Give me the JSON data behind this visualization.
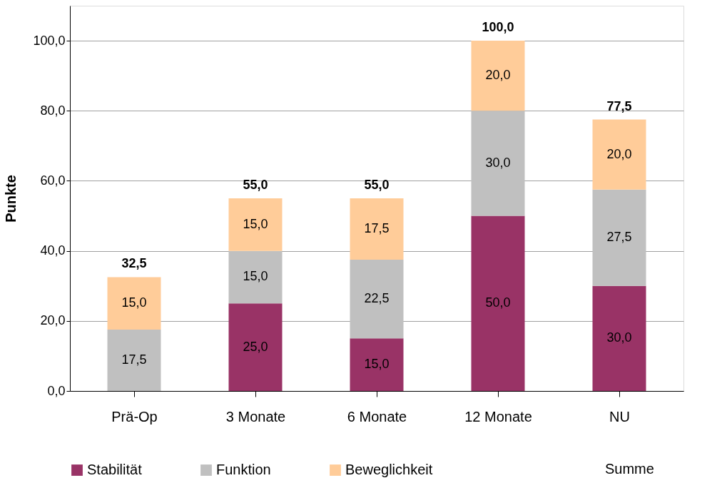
{
  "chart_data": {
    "type": "bar",
    "stacked": true,
    "ylabel": "Punkte",
    "categories": [
      "Prä-Op",
      "3 Monate",
      "6 Monate",
      "12 Monate",
      "NU"
    ],
    "series": [
      {
        "name": "Stabilität",
        "color": "#993366",
        "values": [
          0,
          25,
          15,
          50,
          30
        ],
        "value_labels": [
          null,
          "25,0",
          "15,0",
          "50,0",
          "30,0"
        ]
      },
      {
        "name": "Funktion",
        "color": "#c0c0c0",
        "values": [
          17.5,
          15,
          22.5,
          30,
          27.5
        ],
        "value_labels": [
          "17,5",
          "15,0",
          "22,5",
          "30,0",
          "27,5"
        ]
      },
      {
        "name": "Beweglichkeit",
        "color": "#ffcc99",
        "values": [
          15,
          15,
          17.5,
          20,
          20
        ],
        "value_labels": [
          "15,0",
          "15,0",
          "17,5",
          "20,0",
          "20,0"
        ]
      }
    ],
    "totals": [
      "32,5",
      "55,0",
      "55,0",
      "100,0",
      "77,5"
    ],
    "annotations": [
      "Summe"
    ],
    "ylim": [
      0,
      110
    ],
    "yticks": [
      {
        "value": 0,
        "label": "0,0"
      },
      {
        "value": 20,
        "label": "20,0"
      },
      {
        "value": 40,
        "label": "40,0"
      },
      {
        "value": 60,
        "label": "60,0"
      },
      {
        "value": 80,
        "label": "80,0"
      },
      {
        "value": 100,
        "label": "100,0"
      }
    ],
    "grid": "y",
    "legend": "bottom"
  }
}
